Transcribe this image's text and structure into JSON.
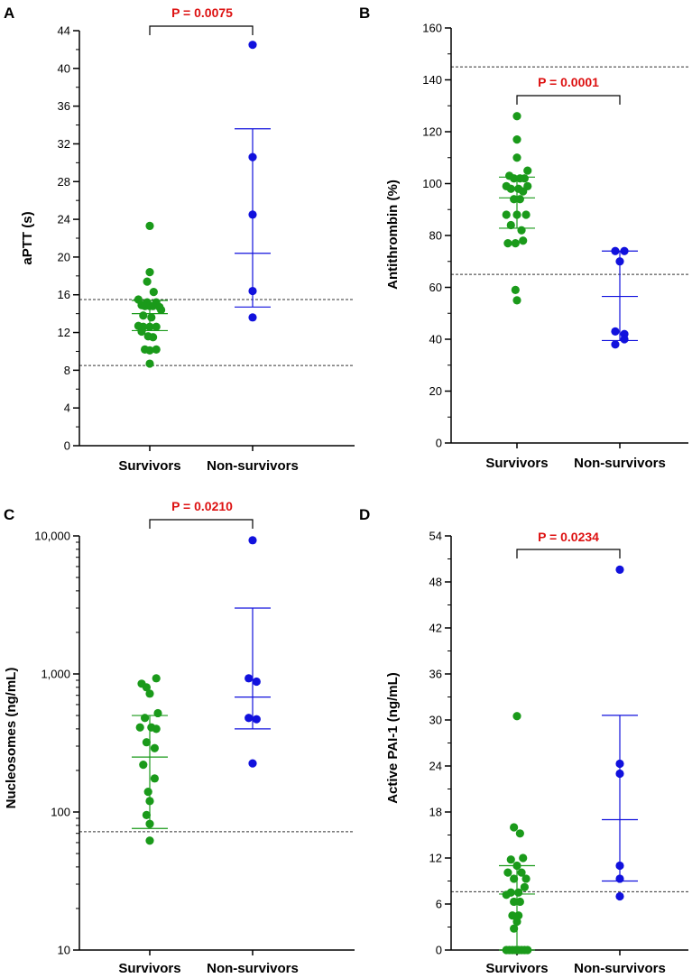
{
  "colors": {
    "survivors": "#1a9a1a",
    "non_survivors": "#1111dd",
    "pvalue": "#dd1111",
    "axis": "#000000"
  },
  "chart_data": [
    {
      "panel": "A",
      "type": "scatter",
      "scale": "linear",
      "ylabel": "aPTT (s)",
      "ylim": [
        0,
        44
      ],
      "yticks": [
        0,
        4,
        8,
        12,
        16,
        20,
        24,
        28,
        32,
        36,
        40,
        44
      ],
      "ytick_labels": [
        "0",
        "4",
        "8",
        "12",
        "16",
        "20",
        "24",
        "28",
        "32",
        "36",
        "40",
        "44"
      ],
      "minor_ticks": [
        2,
        6,
        10,
        14,
        18,
        22,
        26,
        30,
        34,
        38,
        42
      ],
      "categories": [
        "Survivors",
        "Non-survivors"
      ],
      "pvalue": "P = 0.0075",
      "ref_lines": [
        15.5,
        8.5
      ],
      "series": [
        {
          "name": "Survivors",
          "center": 14.0,
          "low": 12.2,
          "high": 15.4,
          "points": [
            [
              0,
              23.3
            ],
            [
              0,
              18.4
            ],
            [
              -0.08,
              17.4
            ],
            [
              0.12,
              16.3
            ],
            [
              -0.35,
              15.5
            ],
            [
              -0.08,
              15.2
            ],
            [
              0.2,
              15.2
            ],
            [
              -0.25,
              14.9
            ],
            [
              -0.15,
              14.8
            ],
            [
              0,
              14.8
            ],
            [
              0.1,
              14.8
            ],
            [
              0.3,
              14.7
            ],
            [
              0.35,
              14.4
            ],
            [
              -0.2,
              13.8
            ],
            [
              0.05,
              13.6
            ],
            [
              -0.35,
              12.7
            ],
            [
              -0.2,
              12.6
            ],
            [
              0,
              12.6
            ],
            [
              0.2,
              12.6
            ],
            [
              -0.25,
              12.1
            ],
            [
              -0.05,
              11.6
            ],
            [
              0.1,
              11.5
            ],
            [
              0,
              10.1
            ],
            [
              -0.15,
              10.2
            ],
            [
              0.2,
              10.2
            ],
            [
              0,
              8.7
            ]
          ]
        },
        {
          "name": "Non-survivors",
          "center": 20.4,
          "low": 14.7,
          "high": 33.6,
          "points": [
            [
              0,
              42.5
            ],
            [
              0,
              30.6
            ],
            [
              0,
              24.5
            ],
            [
              0,
              16.4
            ],
            [
              0,
              13.6
            ]
          ]
        }
      ]
    },
    {
      "panel": "B",
      "type": "scatter",
      "scale": "linear",
      "ylabel": "Antithrombin (%)",
      "ylim": [
        0,
        160
      ],
      "yticks": [
        0,
        20,
        40,
        60,
        80,
        100,
        120,
        140,
        160
      ],
      "ytick_labels": [
        "0",
        "20",
        "40",
        "60",
        "80",
        "100",
        "120",
        "140",
        "160"
      ],
      "minor_ticks": [
        10,
        30,
        50,
        70,
        90,
        110,
        130,
        150
      ],
      "categories": [
        "Survivors",
        "Non-survivors"
      ],
      "pvalue": "P = 0.0001",
      "ref_lines": [
        145,
        65
      ],
      "series": [
        {
          "name": "Survivors",
          "center": 94.5,
          "low": 82.8,
          "high": 102.5,
          "points": [
            [
              0,
              126
            ],
            [
              0,
              117
            ],
            [
              0,
              110
            ],
            [
              0.35,
              105
            ],
            [
              -0.25,
              103
            ],
            [
              -0.1,
              102
            ],
            [
              0.1,
              102
            ],
            [
              0.25,
              102
            ],
            [
              -0.35,
              99
            ],
            [
              0.35,
              99
            ],
            [
              -0.2,
              98
            ],
            [
              0.05,
              98
            ],
            [
              0.2,
              97
            ],
            [
              -0.1,
              94
            ],
            [
              0.1,
              94
            ],
            [
              -0.35,
              88
            ],
            [
              0,
              88
            ],
            [
              0.3,
              88
            ],
            [
              -0.2,
              84
            ],
            [
              0.15,
              82
            ],
            [
              -0.3,
              77
            ],
            [
              -0.05,
              77
            ],
            [
              0.2,
              78
            ],
            [
              -0.05,
              59
            ],
            [
              0,
              55
            ]
          ]
        },
        {
          "name": "Non-survivors",
          "center": 56.5,
          "low": 39.5,
          "high": 74,
          "points": [
            [
              -0.15,
              74
            ],
            [
              0.15,
              74
            ],
            [
              0,
              70
            ],
            [
              -0.15,
              43
            ],
            [
              0.15,
              42
            ],
            [
              -0.15,
              38
            ],
            [
              0.15,
              40
            ]
          ]
        }
      ]
    },
    {
      "panel": "C",
      "type": "scatter",
      "scale": "log",
      "ylabel": "Nucleosomes (ng/mL)",
      "ylim": [
        10,
        10000
      ],
      "yticks": [
        10,
        100,
        1000,
        10000
      ],
      "ytick_labels": [
        "10",
        "100",
        "1,000",
        "10,000"
      ],
      "minor_ticks": [],
      "categories": [
        "Survivors",
        "Non-survivors"
      ],
      "pvalue": "P = 0.0210",
      "ref_lines": [
        72
      ],
      "series": [
        {
          "name": "Survivors",
          "center": 250,
          "low": 76,
          "high": 500,
          "points": [
            [
              -0.25,
              850
            ],
            [
              0.2,
              930
            ],
            [
              -0.1,
              800
            ],
            [
              0,
              720
            ],
            [
              0.25,
              520
            ],
            [
              -0.15,
              480
            ],
            [
              -0.3,
              410
            ],
            [
              0.05,
              410
            ],
            [
              0.2,
              400
            ],
            [
              -0.1,
              320
            ],
            [
              0.15,
              290
            ],
            [
              -0.2,
              220
            ],
            [
              0.15,
              175
            ],
            [
              -0.05,
              140
            ],
            [
              0,
              120
            ],
            [
              -0.1,
              95
            ],
            [
              0,
              82
            ],
            [
              0,
              62
            ]
          ]
        },
        {
          "name": "Non-survivors",
          "center": 680,
          "low": 400,
          "high": 3000,
          "points": [
            [
              0,
              9300
            ],
            [
              -0.12,
              930
            ],
            [
              0.12,
              880
            ],
            [
              -0.12,
              480
            ],
            [
              0.12,
              470
            ],
            [
              0,
              225
            ]
          ]
        }
      ]
    },
    {
      "panel": "D",
      "type": "scatter",
      "scale": "linear",
      "ylabel": "Active PAI-1 (ng/mL)",
      "ylim": [
        0,
        54
      ],
      "yticks": [
        0,
        6,
        12,
        18,
        24,
        30,
        36,
        42,
        48,
        54
      ],
      "ytick_labels": [
        "0",
        "6",
        "12",
        "18",
        "24",
        "30",
        "36",
        "42",
        "48",
        "54"
      ],
      "minor_ticks": [
        3,
        9,
        15,
        21,
        27,
        33,
        39,
        45,
        51
      ],
      "categories": [
        "Survivors",
        "Non-survivors"
      ],
      "pvalue": "P = 0.0234",
      "ref_lines": [
        7.6
      ],
      "series": [
        {
          "name": "Survivors",
          "center": 7.3,
          "low": 0,
          "high": 11,
          "points": [
            [
              0,
              30.5
            ],
            [
              -0.1,
              16
            ],
            [
              0.1,
              15.2
            ],
            [
              -0.2,
              11.8
            ],
            [
              0.2,
              12
            ],
            [
              0,
              11
            ],
            [
              -0.3,
              10.1
            ],
            [
              0.15,
              10.1
            ],
            [
              0.3,
              9.3
            ],
            [
              -0.1,
              9.3
            ],
            [
              0.25,
              8.2
            ],
            [
              -0.2,
              7.5
            ],
            [
              0.05,
              7.5
            ],
            [
              -0.35,
              7.2
            ],
            [
              0.1,
              6.3
            ],
            [
              -0.1,
              6.3
            ],
            [
              -0.15,
              4.5
            ],
            [
              0.05,
              4.5
            ],
            [
              0,
              3.7
            ],
            [
              -0.1,
              2.8
            ],
            [
              -0.35,
              0
            ],
            [
              -0.25,
              0
            ],
            [
              -0.15,
              0
            ],
            [
              -0.05,
              0
            ],
            [
              0.05,
              0
            ],
            [
              0.15,
              0
            ],
            [
              0.25,
              0
            ],
            [
              0.35,
              0
            ]
          ]
        },
        {
          "name": "Non-survivors",
          "center": 17,
          "low": 9,
          "high": 30.6,
          "points": [
            [
              0,
              49.6
            ],
            [
              0,
              24.3
            ],
            [
              0,
              23
            ],
            [
              0,
              11
            ],
            [
              0,
              9.3
            ],
            [
              0,
              7
            ]
          ]
        }
      ]
    }
  ]
}
